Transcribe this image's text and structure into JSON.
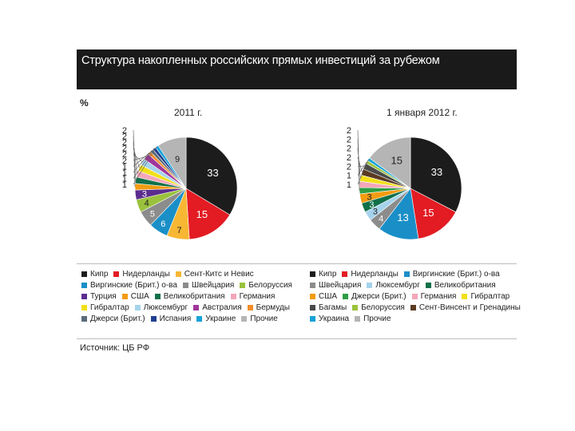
{
  "header": {
    "title": "Структура накопленных российских прямых инвестиций за рубежом"
  },
  "unit": "%",
  "source": "Источник: ЦБ РФ",
  "chart_data": [
    {
      "type": "pie",
      "title": "2011 г.",
      "slices": [
        {
          "name": "Кипр",
          "value": 33,
          "color": "#1c1c1c"
        },
        {
          "name": "Нидерланды",
          "value": 15,
          "color": "#e31b23"
        },
        {
          "name": "Сент-Китс и Невис",
          "value": 7,
          "color": "#f7b733"
        },
        {
          "name": "Виргинские (Брит.) о-ва",
          "value": 6,
          "color": "#1a8fc7"
        },
        {
          "name": "Швейцария",
          "value": 5,
          "color": "#8c8c8c"
        },
        {
          "name": "Белоруссия",
          "value": 4,
          "color": "#9ac23c"
        },
        {
          "name": "Турция",
          "value": 3,
          "color": "#5b2d8e"
        },
        {
          "name": "США",
          "value": 2,
          "color": "#f39c12"
        },
        {
          "name": "Великобритания",
          "value": 2,
          "color": "#11704a"
        },
        {
          "name": "Германия",
          "value": 2,
          "color": "#f4a7b9"
        },
        {
          "name": "Гибралтар",
          "value": 2,
          "color": "#f2e01a"
        },
        {
          "name": "Люксембург",
          "value": 2,
          "color": "#a6d3ec"
        },
        {
          "name": "Австралия",
          "value": 2,
          "color": "#a0369b"
        },
        {
          "name": "Бермуды",
          "value": 1,
          "color": "#f28c28"
        },
        {
          "name": "Джерси (Брит.)",
          "value": 1,
          "color": "#5a6b7c"
        },
        {
          "name": "Испания",
          "value": 1,
          "color": "#1f3f8f"
        },
        {
          "name": "Украина",
          "value": 1,
          "color": "#17a2d8"
        },
        {
          "name": "Прочие",
          "value": 9,
          "color": "#b5b5b5"
        }
      ]
    },
    {
      "type": "pie",
      "title": "1 января 2012 г.",
      "slices": [
        {
          "name": "Кипр",
          "value": 33,
          "color": "#1c1c1c"
        },
        {
          "name": "Нидерланды",
          "value": 15,
          "color": "#e31b23"
        },
        {
          "name": "Виргинские (Брит.) о-ва",
          "value": 13,
          "color": "#1a8fc7"
        },
        {
          "name": "Швейцария",
          "value": 4,
          "color": "#8c8c8c"
        },
        {
          "name": "Люксембург",
          "value": 3,
          "color": "#a6d3ec"
        },
        {
          "name": "Великобритания",
          "value": 3,
          "color": "#11704a"
        },
        {
          "name": "США",
          "value": 3,
          "color": "#f39c12"
        },
        {
          "name": "Джерси (Брит.)",
          "value": 2,
          "color": "#2f9e44"
        },
        {
          "name": "Германия",
          "value": 2,
          "color": "#f4a7b9"
        },
        {
          "name": "Гибралтар",
          "value": 2,
          "color": "#f2e01a"
        },
        {
          "name": "Сент-Винсент и Гренадины",
          "value": 2,
          "color": "#5a3a22"
        },
        {
          "name": "Багамы",
          "value": 2,
          "color": "#4a4a4a"
        },
        {
          "name": "Белоруссия",
          "value": 1,
          "color": "#9ac23c"
        },
        {
          "name": "Украина",
          "value": 1,
          "color": "#17a2d8"
        },
        {
          "name": "Прочие",
          "value": 15,
          "color": "#b5b5b5"
        }
      ]
    }
  ],
  "legend_left": [
    [
      {
        "label": "Кипр",
        "color": "#1c1c1c"
      },
      {
        "label": "Нидерланды",
        "color": "#e31b23"
      },
      {
        "label": "Сент-Китс и Невис",
        "color": "#f7b733"
      }
    ],
    [
      {
        "label": "Виргинские (Брит.) о-ва",
        "color": "#1a8fc7"
      },
      {
        "label": "Швейцария",
        "color": "#8c8c8c"
      },
      {
        "label": "Белоруссия",
        "color": "#9ac23c"
      }
    ],
    [
      {
        "label": "Турция",
        "color": "#5b2d8e"
      },
      {
        "label": "США",
        "color": "#f39c12"
      },
      {
        "label": "Великобритания",
        "color": "#11704a"
      },
      {
        "label": "Германия",
        "color": "#f4a7b9"
      }
    ],
    [
      {
        "label": "Гибралтар",
        "color": "#f2e01a"
      },
      {
        "label": "Люксембург",
        "color": "#a6d3ec"
      },
      {
        "label": "Австралия",
        "color": "#a0369b"
      },
      {
        "label": "Бермуды",
        "color": "#f28c28"
      }
    ],
    [
      {
        "label": "Джерси (Брит.)",
        "color": "#5a6b7c"
      },
      {
        "label": "Испания",
        "color": "#1f3f8f"
      },
      {
        "label": "Украине",
        "color": "#17a2d8"
      },
      {
        "label": "Прочие",
        "color": "#b5b5b5"
      }
    ]
  ],
  "legend_right": [
    [
      {
        "label": "Кипр",
        "color": "#1c1c1c"
      },
      {
        "label": "Нидерланды",
        "color": "#e31b23"
      },
      {
        "label": "Виргинские (Брит.) о-ва",
        "color": "#1a8fc7"
      }
    ],
    [
      {
        "label": "Швейцария",
        "color": "#8c8c8c"
      },
      {
        "label": "Люксембург",
        "color": "#a6d3ec"
      },
      {
        "label": "Великобритания",
        "color": "#11704a"
      }
    ],
    [
      {
        "label": "США",
        "color": "#f39c12"
      },
      {
        "label": "Джерси (Брит.)",
        "color": "#2f9e44"
      },
      {
        "label": "Германия",
        "color": "#f4a7b9"
      },
      {
        "label": "Гибралтар",
        "color": "#f2e01a"
      }
    ],
    [
      {
        "label": "Багамы",
        "color": "#4a4a4a"
      },
      {
        "label": "Белоруссия",
        "color": "#9ac23c"
      },
      {
        "label": "Сент-Винсент и Гренадины",
        "color": "#5a3a22"
      }
    ],
    [
      {
        "label": "Украина",
        "color": "#17a2d8"
      },
      {
        "label": "Прочие",
        "color": "#b5b5b5"
      }
    ]
  ]
}
